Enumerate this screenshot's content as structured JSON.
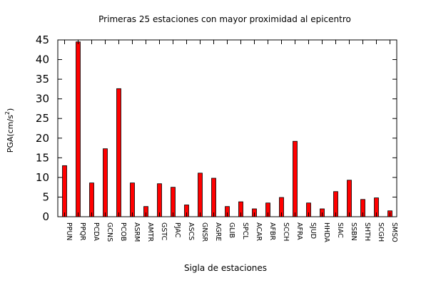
{
  "chart_data": {
    "type": "bar",
    "title": "Primeras 25 estaciones con mayor proximidad al epicentro",
    "xlabel": "Sigla de estaciones",
    "ylabel_main": "PGA(cm/s",
    "ylabel_sup": "2",
    "ylabel_close": ")",
    "ylim": [
      0,
      45
    ],
    "yticks": [
      0,
      5,
      10,
      15,
      20,
      25,
      30,
      35,
      40,
      45
    ],
    "grid": false,
    "legend": "none",
    "bar_color": "#ff0000",
    "bar_outline": "#000000",
    "categories": [
      "PPUN",
      "PPQR",
      "PCDA",
      "GCNS",
      "PCOB",
      "ASRM",
      "AMTR",
      "GSTC",
      "PJAC",
      "ASCS",
      "GNSR",
      "AGRE",
      "GLIB",
      "SPCL",
      "ACAR",
      "AFBR",
      "SCCH",
      "AFRA",
      "SJUD",
      "HHDA",
      "SIAC",
      "SSBN",
      "SHTH",
      "SCGH",
      "SMSO"
    ],
    "values": [
      13.0,
      44.5,
      8.6,
      17.3,
      32.6,
      8.6,
      2.6,
      8.4,
      7.5,
      3.0,
      11.1,
      9.8,
      2.6,
      3.8,
      2.0,
      3.5,
      4.9,
      19.2,
      3.5,
      2.0,
      6.4,
      9.3,
      4.4,
      4.8,
      1.5
    ]
  }
}
